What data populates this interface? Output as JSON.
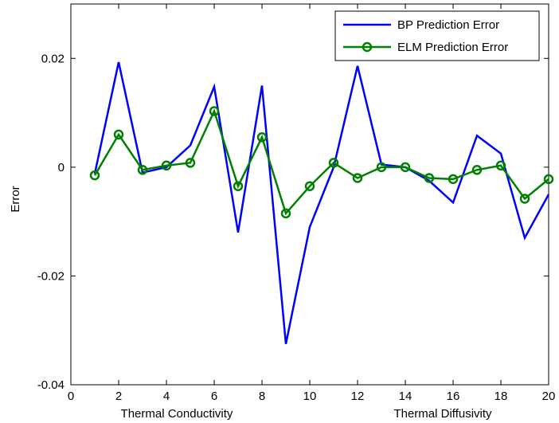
{
  "chart_data": {
    "type": "line",
    "x": [
      1,
      2,
      3,
      4,
      5,
      6,
      7,
      8,
      9,
      10,
      11,
      12,
      13,
      14,
      15,
      16,
      17,
      18,
      19,
      20
    ],
    "series": [
      {
        "name": "BP Prediction Error",
        "color": "#0000ff",
        "marker": "none",
        "values": [
          -0.0012,
          0.0193,
          -0.001,
          0.0,
          0.004,
          0.0148,
          -0.012,
          0.015,
          -0.0325,
          -0.011,
          0.0,
          0.0186,
          0.0005,
          0.0,
          -0.0025,
          -0.0065,
          0.0058,
          0.0025,
          -0.013,
          -0.005
        ]
      },
      {
        "name": "ELM Prediction Error",
        "color": "#008000",
        "marker": "circle",
        "values": [
          -0.0015,
          0.006,
          -0.0005,
          0.0003,
          0.0008,
          0.0103,
          -0.0035,
          0.0055,
          -0.0085,
          -0.0035,
          0.0008,
          -0.002,
          0.0,
          0.0,
          -0.002,
          -0.0022,
          -0.0005,
          0.0003,
          -0.0058,
          -0.0022
        ]
      }
    ],
    "xlim": [
      0,
      20
    ],
    "ylim": [
      -0.04,
      0.03
    ],
    "xticks": [
      "0",
      "2",
      "4",
      "6",
      "8",
      "10",
      "12",
      "14",
      "16",
      "18",
      "20"
    ],
    "yticks": [
      "-0.04",
      "-0.02",
      "0",
      "0.02"
    ],
    "ylabel": "Error",
    "xlabel_left": "Thermal Conductivity",
    "xlabel_right": "Thermal Diffusivity",
    "grid": false,
    "legend_position": "top-right"
  }
}
